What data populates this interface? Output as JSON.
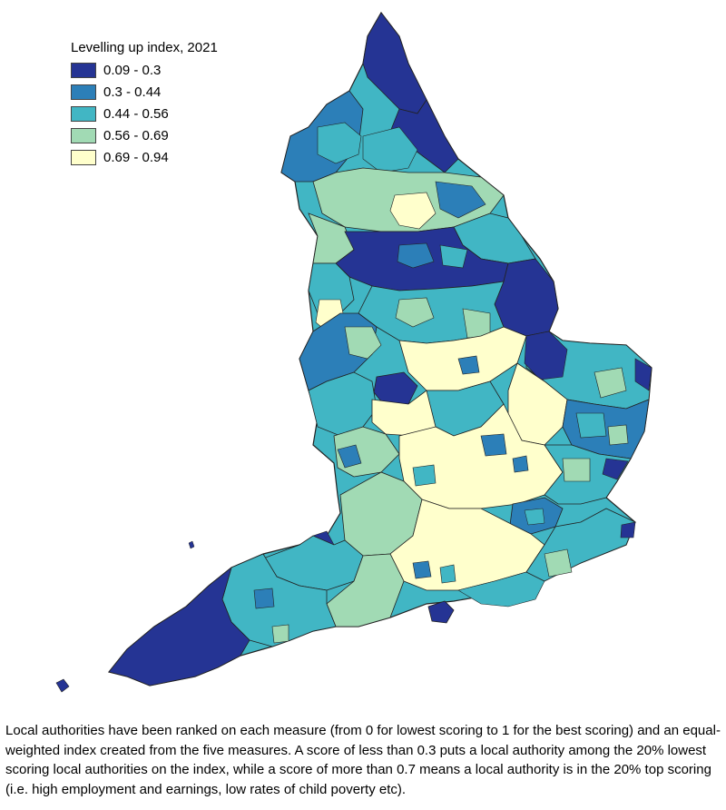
{
  "legend": {
    "title": "Levelling up index, 2021",
    "classes": [
      {
        "label": "0.09 - 0.3",
        "color": "#253494"
      },
      {
        "label": "0.3 - 0.44",
        "color": "#2c7fb8"
      },
      {
        "label": "0.44 - 0.56",
        "color": "#41b6c4"
      },
      {
        "label": "0.56 - 0.69",
        "color": "#a1dab4"
      },
      {
        "label": "0.69 - 0.94",
        "color": "#ffffcc"
      }
    ]
  },
  "caption": {
    "text": "Local authorities have been ranked on each measure (from 0 for lowest scoring to 1 for the best scoring) and an equal-weighted index created from the five measures. A score of less than 0.3 puts a local authority among the 20% lowest scoring local authorities on the index, while a score of more than 0.7 means a local authority is in the 20% top scoring (i.e. high employment and earnings, low rates of child poverty etc)."
  }
}
